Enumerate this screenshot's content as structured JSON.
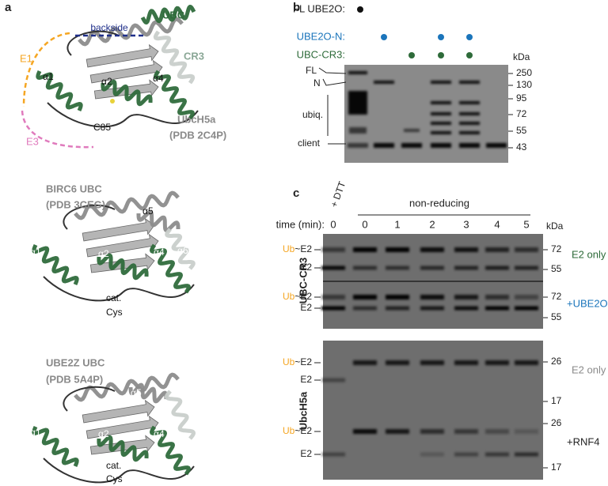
{
  "panel_a": {
    "label": "a",
    "structures": [
      {
        "name": "UbcH5a",
        "pdb": "(PDB 2C4P)",
        "labels": [
          "backside",
          "UBC",
          "E1",
          "CR3",
          "α1",
          "α2",
          "α4",
          "C85",
          "E3"
        ]
      },
      {
        "name": "BIRC6 UBC",
        "pdb": "(PDB 3CEG)",
        "labels": [
          "α5",
          "α1",
          "α2",
          "α4",
          "α6",
          "cat.",
          "Cys"
        ]
      },
      {
        "name": "UBE2Z UBC",
        "pdb": "(PDB 5A4P)",
        "labels": [
          "α5",
          "α6",
          "α1",
          "α2",
          "α4",
          "cat.",
          "Cys"
        ]
      }
    ]
  },
  "panel_b": {
    "label": "b",
    "rows": [
      "FL UBE2O:",
      "UBE2O-N:",
      "UBC-CR3:"
    ],
    "unit": "kDa",
    "band_labels": [
      "FL",
      "N",
      "ubiq.",
      "client"
    ],
    "markers": [
      "250",
      "130",
      "95",
      "72",
      "55",
      "43"
    ]
  },
  "panel_c": {
    "label": "c",
    "dtt": "+ DTT",
    "condition": "non-reducing",
    "time_label": "time (min):",
    "times": [
      "0",
      "0",
      "1",
      "2",
      "3",
      "4",
      "5"
    ],
    "unit": "kDa",
    "ub": "Ub",
    "e2_conj": "~E2",
    "e2": "E2",
    "groups": [
      {
        "name": "UBC-CR3",
        "gels": [
          {
            "condition": "E2 only",
            "markers": [
              "72",
              "55"
            ]
          },
          {
            "condition": "+UBE2O-N",
            "markers": [
              "72",
              "55"
            ]
          }
        ]
      },
      {
        "name": "UbcH5a",
        "gels": [
          {
            "condition": "E2 only",
            "markers": [
              "26",
              "17"
            ]
          },
          {
            "condition": "+RNF4",
            "markers": [
              "26",
              "17"
            ]
          }
        ]
      }
    ]
  }
}
